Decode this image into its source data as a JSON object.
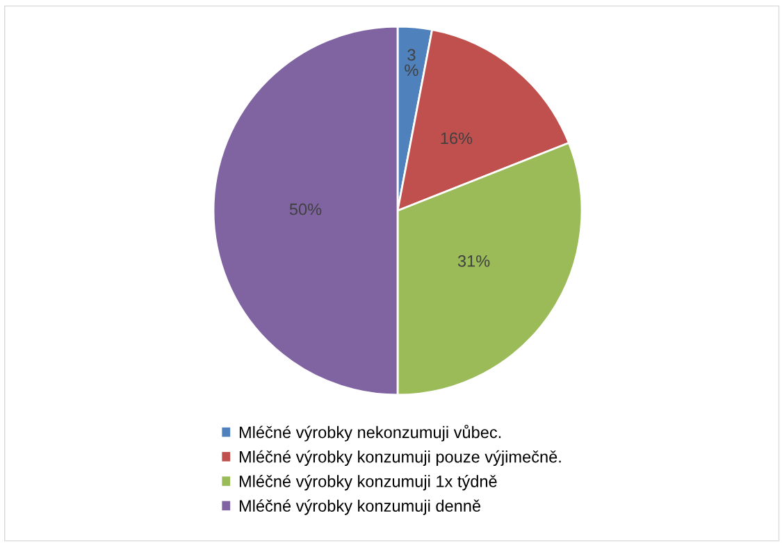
{
  "chart_data": {
    "type": "pie",
    "categories": [
      "Mléčné výrobky nekonzumuji vůbec.",
      "Mléčné výrobky konzumuji pouze výjimečně.",
      "Mléčné výrobky konzumuji 1x týdně",
      "Mléčné výrobky konzumuji denně"
    ],
    "values": [
      3,
      16,
      31,
      50
    ],
    "colors": [
      "#4f81bd",
      "#c0504d",
      "#9bbb59",
      "#8064a2"
    ],
    "value_labels": [
      "3%",
      "16%",
      "31%",
      "50%"
    ],
    "legend": "bottom"
  }
}
